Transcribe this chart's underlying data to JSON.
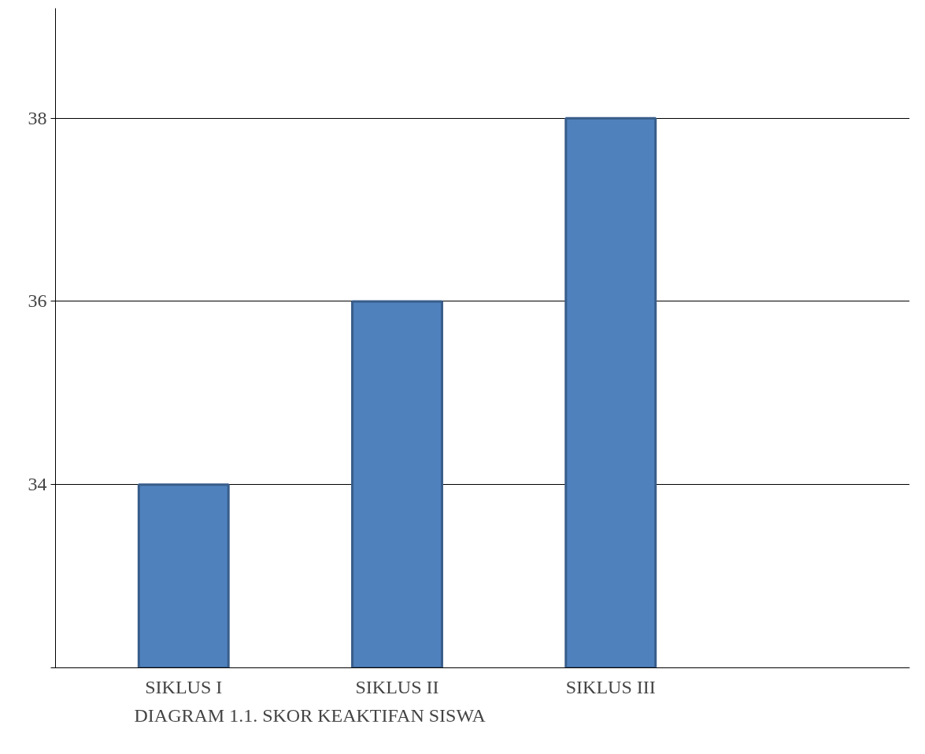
{
  "chart_data": {
    "type": "bar",
    "categories": [
      "SIKLUS I",
      "SIKLUS II",
      "SIKLUS III"
    ],
    "values": [
      34,
      36,
      38
    ],
    "color": "#4f81bd",
    "ylim": [
      32,
      39.2
    ],
    "yticks": [
      {
        "value": 32,
        "label": null
      },
      34,
      36,
      38
    ],
    "grid": "y",
    "annotations": [
      "DIAGRAM 1.1. SKOR KEAKTIFAN SISWA"
    ]
  }
}
